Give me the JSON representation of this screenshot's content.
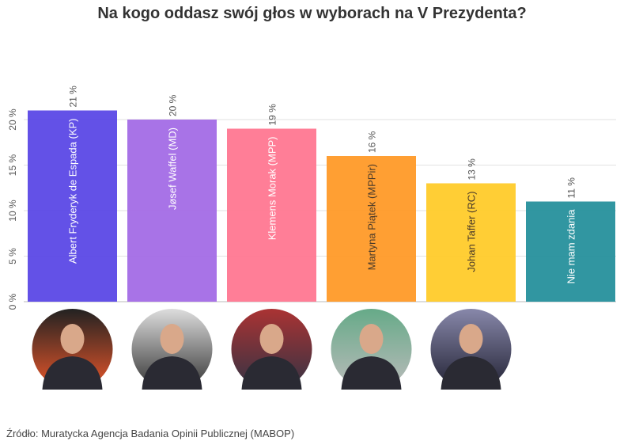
{
  "chart_data": {
    "type": "bar",
    "title": "Na kogo oddasz swój głos w wyborach na V Prezydenta?",
    "categories": [
      "Albert Fryderyk de Espada (KP)",
      "Jøsef Waffel (MD)",
      "Klemens Morak (MPP)",
      "Martyna Piątek (MPPir)",
      "Johan Taffer (RC)",
      "Nie mam zdania"
    ],
    "values": [
      21,
      20,
      19,
      16,
      13,
      11
    ],
    "value_labels": [
      "21 %",
      "20 %",
      "19 %",
      "16 %",
      "13 %",
      "11 %"
    ],
    "colors": [
      "#5b48e6",
      "#a36ce6",
      "#ff7791",
      "#ff9a28",
      "#ffcb2a",
      "#26909c"
    ],
    "label_colors": [
      "#ffffff",
      "#ffffff",
      "#ffffff",
      "#4a3a2a",
      "#4a3a2a",
      "#ffffff"
    ],
    "yticks": [
      0,
      5,
      10,
      15,
      20
    ],
    "ytick_labels": [
      "0 %",
      "5 %",
      "10 %",
      "15 %",
      "20 %"
    ],
    "ylim": [
      0,
      21
    ],
    "grid": true,
    "xlabel": "",
    "ylabel": ""
  },
  "source": "Źródło: Muratycka Agencja Badania Opinii Publicznej (MABOP)"
}
